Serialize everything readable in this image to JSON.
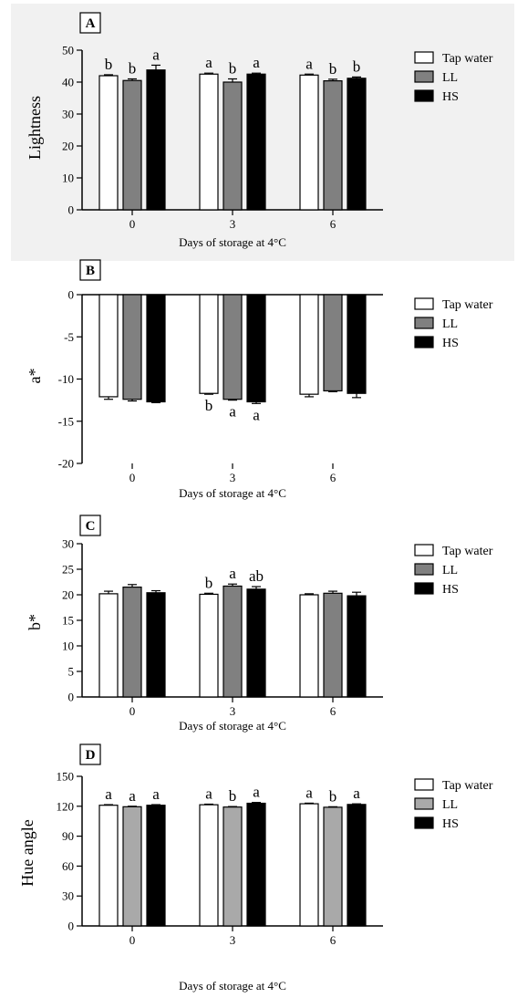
{
  "chart_data": [
    {
      "type": "bar",
      "panel": "A",
      "categories": [
        "0",
        "3",
        "6"
      ],
      "xlabel": "Days of storage at 4°C",
      "ylabel": "Lightness",
      "ylim": [
        0,
        50
      ],
      "yticks": [
        "0",
        "10",
        "20",
        "30",
        "40",
        "50"
      ],
      "background": "#f1f1f1",
      "series": [
        {
          "name": "Tap water",
          "color": "#ffffff",
          "values": [
            42.0,
            42.5,
            42.2
          ],
          "errors": [
            0.3,
            0.3,
            0.3
          ],
          "labels": [
            "b",
            "a",
            "a"
          ]
        },
        {
          "name": "LL",
          "color": "#808080",
          "values": [
            40.5,
            40.0,
            40.4
          ],
          "errors": [
            0.5,
            1.0,
            0.5
          ],
          "labels": [
            "b",
            "b",
            "b"
          ]
        },
        {
          "name": "HS",
          "color": "#000000",
          "values": [
            43.8,
            42.5,
            41.2
          ],
          "errors": [
            1.5,
            0.3,
            0.4
          ],
          "labels": [
            "a",
            "a",
            "b"
          ]
        }
      ]
    },
    {
      "type": "bar",
      "panel": "B",
      "categories": [
        "0",
        "3",
        "6"
      ],
      "xlabel": "Days of storage at 4°C",
      "ylabel": "a*",
      "ylim": [
        -20,
        0
      ],
      "yticks": [
        "0",
        "-5",
        "-10",
        "-15",
        "-20"
      ],
      "background": "#ffffff",
      "series": [
        {
          "name": "Tap water",
          "color": "#ffffff",
          "values": [
            -12.1,
            -11.7,
            -11.8
          ],
          "errors": [
            0.3,
            0.1,
            0.3
          ],
          "labels": [
            "",
            "b",
            ""
          ]
        },
        {
          "name": "LL",
          "color": "#808080",
          "values": [
            -12.4,
            -12.4,
            -11.4
          ],
          "errors": [
            0.2,
            0.1,
            0.1
          ],
          "labels": [
            "",
            "a",
            ""
          ]
        },
        {
          "name": "HS",
          "color": "#000000",
          "values": [
            -12.7,
            -12.7,
            -11.7
          ],
          "errors": [
            0.1,
            0.2,
            0.5
          ],
          "labels": [
            "",
            "a",
            ""
          ]
        }
      ]
    },
    {
      "type": "bar",
      "panel": "C",
      "categories": [
        "0",
        "3",
        "6"
      ],
      "xlabel": "Days of storage at 4°C",
      "ylabel": "b*",
      "ylim": [
        0,
        30
      ],
      "yticks": [
        "0",
        "5",
        "10",
        "15",
        "20",
        "25",
        "30"
      ],
      "background": "#ffffff",
      "series": [
        {
          "name": "Tap water",
          "color": "#ffffff",
          "values": [
            20.2,
            20.1,
            20.0
          ],
          "errors": [
            0.5,
            0.2,
            0.2
          ],
          "labels": [
            "",
            "b",
            ""
          ]
        },
        {
          "name": "LL",
          "color": "#808080",
          "values": [
            21.5,
            21.7,
            20.3
          ],
          "errors": [
            0.5,
            0.4,
            0.4
          ],
          "labels": [
            "",
            "a",
            ""
          ]
        },
        {
          "name": "HS",
          "color": "#000000",
          "values": [
            20.4,
            21.1,
            19.8
          ],
          "errors": [
            0.4,
            0.5,
            0.7
          ],
          "labels": [
            "",
            "ab",
            ""
          ]
        }
      ]
    },
    {
      "type": "bar",
      "panel": "D",
      "categories": [
        "0",
        "3",
        "6"
      ],
      "xlabel": "Days of storage at 4°C",
      "ylabel": "Hue angle",
      "ylim": [
        0,
        150
      ],
      "yticks": [
        "0",
        "30",
        "60",
        "90",
        "120",
        "150"
      ],
      "background": "#ffffff",
      "series": [
        {
          "name": "Tap water",
          "color": "#ffffff",
          "values": [
            121.0,
            121.5,
            122.5
          ],
          "errors": [
            0.6,
            0.6,
            0.6
          ],
          "labels": [
            "a",
            "a",
            "a"
          ]
        },
        {
          "name": "LL",
          "color": "#a9a9a9",
          "values": [
            119.5,
            119.2,
            119.0
          ],
          "errors": [
            0.5,
            0.5,
            0.5
          ],
          "labels": [
            "a",
            "b",
            "b"
          ]
        },
        {
          "name": "HS",
          "color": "#000000",
          "values": [
            121.0,
            123.0,
            121.8
          ],
          "errors": [
            0.6,
            0.8,
            0.6
          ],
          "labels": [
            "a",
            "a",
            "a"
          ]
        }
      ]
    }
  ]
}
